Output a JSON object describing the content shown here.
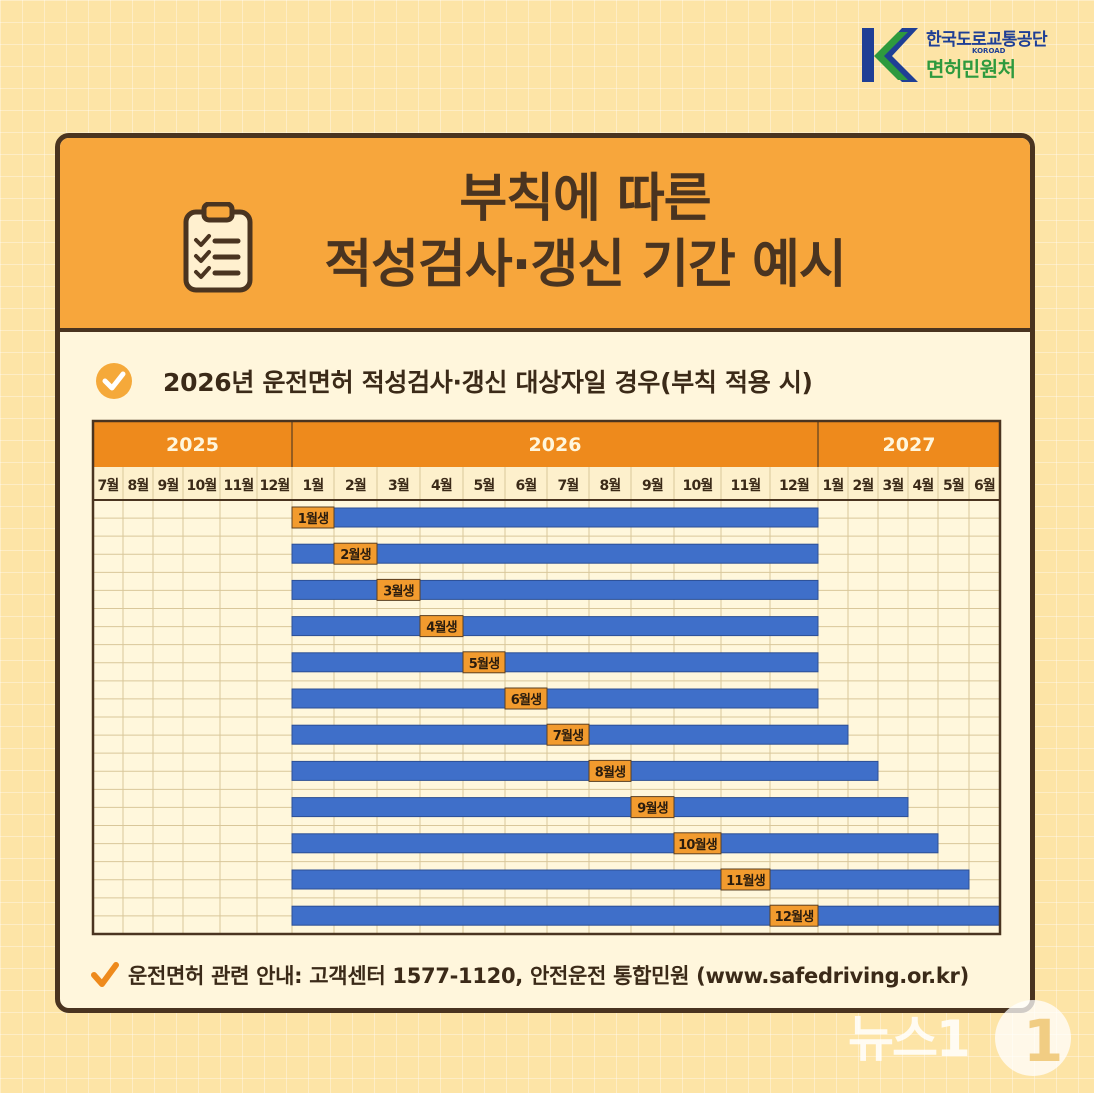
{
  "logo": {
    "org_name": "한국도로교통공단",
    "org_en": "KOROAD",
    "dept": "면허민원처"
  },
  "title": {
    "line1": "부칙에 따른",
    "line2": "적성검사·갱신 기간 예시"
  },
  "subtitle": "2026년 운전면허 적성검사·갱신 대상자일 경우(부칙 적용 시)",
  "footer": "운전면허 관련 안내: 고객센터 1577-1120, 안전운전 통합민원 (www.safedriving.or.kr)",
  "watermark": "뉴스1",
  "icons": {
    "clipboard": "clipboard-checklist-icon",
    "subtitle_check": "check-circle-icon",
    "footer_check": "checkmark-icon"
  },
  "colors": {
    "background": "#fde4a6",
    "header_orange": "#f7a63c",
    "axis_orange": "#ee8a1c",
    "bar_blue": "#3f6fc9",
    "label_orange": "#f29b2e",
    "border_brown": "#4a3420"
  },
  "chart_data": {
    "type": "gantt",
    "years": [
      {
        "label": "2025",
        "months": 6
      },
      {
        "label": "2026",
        "months": 12
      },
      {
        "label": "2027",
        "months": 6
      }
    ],
    "months": [
      "7월",
      "8월",
      "9월",
      "10월",
      "11월",
      "12월",
      "1월",
      "2월",
      "3월",
      "4월",
      "5월",
      "6월",
      "7월",
      "8월",
      "9월",
      "10월",
      "11월",
      "12월",
      "1월",
      "2월",
      "3월",
      "4월",
      "5월",
      "6월"
    ],
    "series": [
      {
        "name": "1월생",
        "start": "2026-01",
        "end": "2026-12",
        "birth_month": "2026-01"
      },
      {
        "name": "2월생",
        "start": "2026-01",
        "end": "2026-12",
        "birth_month": "2026-02"
      },
      {
        "name": "3월생",
        "start": "2026-01",
        "end": "2026-12",
        "birth_month": "2026-03"
      },
      {
        "name": "4월생",
        "start": "2026-01",
        "end": "2026-12",
        "birth_month": "2026-04"
      },
      {
        "name": "5월생",
        "start": "2026-01",
        "end": "2026-12",
        "birth_month": "2026-05"
      },
      {
        "name": "6월생",
        "start": "2026-01",
        "end": "2026-12",
        "birth_month": "2026-06"
      },
      {
        "name": "7월생",
        "start": "2026-01",
        "end": "2027-01",
        "birth_month": "2026-07"
      },
      {
        "name": "8월생",
        "start": "2026-01",
        "end": "2027-02",
        "birth_month": "2026-08"
      },
      {
        "name": "9월생",
        "start": "2026-01",
        "end": "2027-03",
        "birth_month": "2026-09"
      },
      {
        "name": "10월생",
        "start": "2026-01",
        "end": "2027-04",
        "birth_month": "2026-10"
      },
      {
        "name": "11월생",
        "start": "2026-01",
        "end": "2027-05",
        "birth_month": "2026-11"
      },
      {
        "name": "12월생",
        "start": "2026-01",
        "end": "2027-06",
        "birth_month": "2026-12"
      }
    ],
    "grid": true
  }
}
